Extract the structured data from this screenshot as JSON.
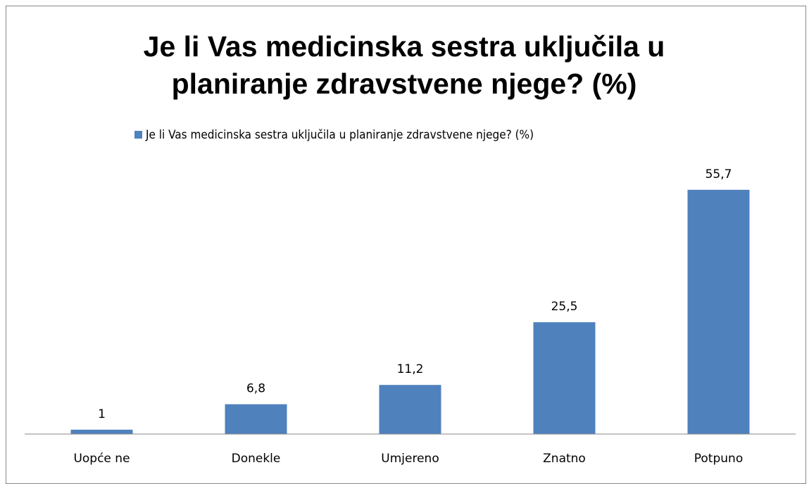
{
  "chart_data": {
    "type": "bar",
    "title": "Je li Vas medicinska sestra uključila u planiranje zdravstvene njege? (%)",
    "categories": [
      "Uopće ne",
      "Donekle",
      "Umjereno",
      "Znatno",
      "Potpuno"
    ],
    "series": [
      {
        "name": "Je li Vas medicinska sestra uključila u planiranje zdravstvene njege? (%)",
        "color": "#4f81bd",
        "values": [
          1,
          6.8,
          11.2,
          25.5,
          55.7
        ],
        "value_labels": [
          "1",
          "6,8",
          "11,2",
          "25,5",
          "55,7"
        ]
      }
    ],
    "ylim": [
      0,
      60
    ],
    "legend": "top"
  }
}
